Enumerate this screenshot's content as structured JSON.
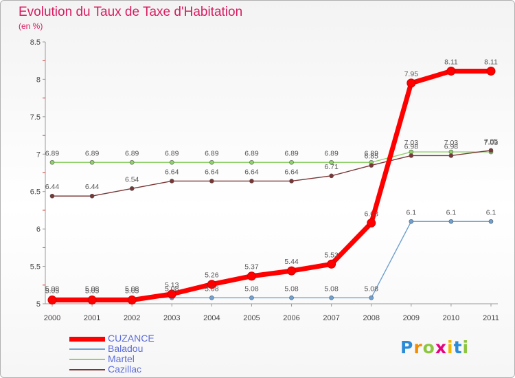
{
  "header": {
    "title": "Evolution du Taux de Taxe d'Habitation",
    "subtitle": "(en %)"
  },
  "logo": {
    "text": "Proxiti"
  },
  "chart_data": {
    "type": "line",
    "title": "Evolution du Taux de Taxe d'Habitation",
    "ylabel": "(en %)",
    "xlabel": "",
    "x": [
      "2000",
      "2001",
      "2002",
      "2003",
      "2004",
      "2005",
      "2006",
      "2007",
      "2008",
      "2009",
      "2010",
      "2011"
    ],
    "yticks": [
      "5",
      "5.5",
      "6",
      "6.5",
      "7",
      "7.5",
      "8",
      "8.5"
    ],
    "ylim": [
      5,
      8.5
    ],
    "grid": false,
    "legend_position": "bottom-left",
    "series": [
      {
        "name": "CUZANCE",
        "color": "#ff0000",
        "values": [
          5.05,
          5.05,
          5.05,
          5.13,
          5.26,
          5.37,
          5.44,
          5.53,
          6.08,
          7.95,
          8.11,
          8.11
        ],
        "labels": [
          "5.05",
          "5.05",
          "5.05",
          "5.13",
          "5.26",
          "5.37",
          "5.44",
          "5.53",
          "6.08",
          "7.95",
          "8.11",
          "8.11"
        ]
      },
      {
        "name": "Baladou",
        "color": "#6fa0cf",
        "values": [
          5.08,
          5.08,
          5.08,
          5.08,
          5.08,
          5.08,
          5.08,
          5.08,
          5.08,
          6.1,
          6.1,
          6.1
        ],
        "labels": [
          "5.08",
          "5.08",
          "5.08",
          "5.08",
          "5.08",
          "5.08",
          "5.08",
          "5.08",
          "5.08",
          "6.1",
          "6.1",
          "6.1"
        ]
      },
      {
        "name": "Martel",
        "color": "#8fd16a",
        "values": [
          6.89,
          6.89,
          6.89,
          6.89,
          6.89,
          6.89,
          6.89,
          6.89,
          6.89,
          7.03,
          7.03,
          7.03
        ],
        "labels": [
          "6.89",
          "6.89",
          "6.89",
          "6.89",
          "6.89",
          "6.89",
          "6.89",
          "6.89",
          "6.89",
          "7.03",
          "7.03",
          "7.03"
        ]
      },
      {
        "name": "Cazillac",
        "color": "#7a3535",
        "values": [
          6.44,
          6.44,
          6.54,
          6.64,
          6.64,
          6.64,
          6.64,
          6.71,
          6.85,
          6.98,
          6.98,
          7.05
        ],
        "labels": [
          "6.44",
          "6.44",
          "6.54",
          "6.64",
          "6.64",
          "6.64",
          "6.64",
          "6.71",
          "6.85",
          "6.98",
          "6.98",
          "7.05"
        ]
      }
    ]
  }
}
